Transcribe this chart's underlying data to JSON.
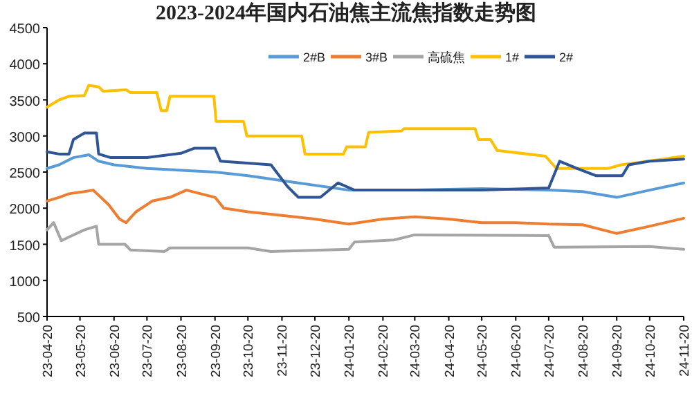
{
  "chart_data": {
    "type": "line",
    "title": "2023-2024年国内石油焦主流焦指数走势图",
    "legend": "top",
    "grid": false,
    "marker": "none",
    "line_style": "solid",
    "xlim": [
      "2023-04-20",
      "2024-11-20"
    ],
    "xticks": [
      {
        "value": "2023-04-20",
        "label": "23-04-20"
      },
      {
        "value": "2023-05-20",
        "label": "23-05-20"
      },
      {
        "value": "2023-06-20",
        "label": "23-06-20"
      },
      {
        "value": "2023-07-20",
        "label": "23-07-20"
      },
      {
        "value": "2023-08-20",
        "label": "23-08-20"
      },
      {
        "value": "2023-09-20",
        "label": "23-09-20"
      },
      {
        "value": "2023-10-20",
        "label": "23-10-20"
      },
      {
        "value": "2023-11-20",
        "label": "23-11-20"
      },
      {
        "value": "2023-12-20",
        "label": "23-12-20"
      },
      {
        "value": "2024-01-20",
        "label": "24-01-20"
      },
      {
        "value": "2024-02-20",
        "label": "24-02-20"
      },
      {
        "value": "2024-03-20",
        "label": "24-03-20"
      },
      {
        "value": "2024-04-20",
        "label": "24-04-20"
      },
      {
        "value": "2024-05-20",
        "label": "24-05-20"
      },
      {
        "value": "2024-06-20",
        "label": "24-06-20"
      },
      {
        "value": "2024-07-20",
        "label": "24-07-20"
      },
      {
        "value": "2024-08-20",
        "label": "24-08-20"
      },
      {
        "value": "2024-09-20",
        "label": "24-09-20"
      },
      {
        "value": "2024-10-20",
        "label": "24-10-20"
      },
      {
        "value": "2024-11-20",
        "label": "24-11-20"
      }
    ],
    "ylim": [
      500,
      4500
    ],
    "yticks": [
      500,
      1000,
      1500,
      2000,
      2500,
      3000,
      3500,
      4000,
      4500
    ],
    "series": [
      {
        "name": "2#B",
        "color": "#5b9bd5",
        "x": [
          "2023-04-20",
          "2023-05-01",
          "2023-05-14",
          "2023-05-28",
          "2023-06-06",
          "2023-06-20",
          "2023-07-20",
          "2023-09-20",
          "2023-10-20",
          "2023-12-05",
          "2024-01-20",
          "2024-03-20",
          "2024-05-20",
          "2024-07-20",
          "2024-08-20",
          "2024-09-20",
          "2024-10-20",
          "2024-11-20"
        ],
        "values": [
          2550,
          2600,
          2700,
          2740,
          2650,
          2600,
          2550,
          2500,
          2450,
          2350,
          2250,
          2250,
          2270,
          2250,
          2230,
          2150,
          2250,
          2350
        ]
      },
      {
        "name": "3#B",
        "color": "#ed7d31",
        "x": [
          "2023-04-20",
          "2023-05-01",
          "2023-05-10",
          "2023-05-24",
          "2023-06-01",
          "2023-06-15",
          "2023-06-25",
          "2023-07-01",
          "2023-07-10",
          "2023-07-25",
          "2023-08-10",
          "2023-08-25",
          "2023-09-20",
          "2023-09-28",
          "2023-10-20",
          "2023-11-20",
          "2023-12-20",
          "2024-01-20",
          "2024-02-20",
          "2024-03-20",
          "2024-04-20",
          "2024-05-20",
          "2024-06-20",
          "2024-07-20",
          "2024-08-20",
          "2024-09-20",
          "2024-10-20",
          "2024-11-20"
        ],
        "values": [
          2100,
          2150,
          2200,
          2230,
          2250,
          2050,
          1850,
          1800,
          1950,
          2100,
          2150,
          2250,
          2150,
          2000,
          1950,
          1900,
          1850,
          1780,
          1850,
          1880,
          1850,
          1800,
          1800,
          1780,
          1770,
          1650,
          1750,
          1860
        ]
      },
      {
        "name": "高硫焦",
        "color": "#a5a5a5",
        "x": [
          "2023-04-20",
          "2023-04-26",
          "2023-05-03",
          "2023-05-10",
          "2023-05-24",
          "2023-06-04",
          "2023-06-06",
          "2023-06-30",
          "2023-07-05",
          "2023-08-05",
          "2023-08-10",
          "2023-10-20",
          "2023-11-10",
          "2024-01-20",
          "2024-01-25",
          "2024-03-01",
          "2024-03-20",
          "2024-07-20",
          "2024-07-25",
          "2024-10-20",
          "2024-11-20"
        ],
        "values": [
          1700,
          1800,
          1550,
          1600,
          1700,
          1750,
          1500,
          1500,
          1420,
          1400,
          1450,
          1450,
          1400,
          1430,
          1530,
          1560,
          1630,
          1620,
          1460,
          1470,
          1430
        ]
      },
      {
        "name": "1#",
        "color": "#ffc000",
        "x": [
          "2023-04-20",
          "2023-05-01",
          "2023-05-10",
          "2023-05-24",
          "2023-05-28",
          "2023-06-06",
          "2023-06-10",
          "2023-07-01",
          "2023-07-05",
          "2023-07-29",
          "2023-08-02",
          "2023-08-07",
          "2023-08-10",
          "2023-09-19",
          "2023-09-21",
          "2023-10-16",
          "2023-10-19",
          "2023-12-08",
          "2023-12-11",
          "2024-01-15",
          "2024-01-18",
          "2024-02-04",
          "2024-02-07",
          "2024-03-08",
          "2024-03-10",
          "2024-05-14",
          "2024-05-17",
          "2024-05-28",
          "2024-06-03",
          "2024-07-17",
          "2024-07-27",
          "2024-09-12",
          "2024-09-24",
          "2024-10-19",
          "2024-11-20"
        ],
        "values": [
          3400,
          3500,
          3550,
          3560,
          3700,
          3680,
          3620,
          3640,
          3600,
          3600,
          3350,
          3350,
          3550,
          3550,
          3200,
          3200,
          3000,
          3000,
          2750,
          2750,
          2850,
          2850,
          3050,
          3070,
          3100,
          3100,
          2950,
          2950,
          2800,
          2720,
          2550,
          2550,
          2600,
          2650,
          2720
        ]
      },
      {
        "name": "2#",
        "color": "#2f5597",
        "x": [
          "2023-04-20",
          "2023-05-01",
          "2023-05-10",
          "2023-05-14",
          "2023-05-24",
          "2023-06-04",
          "2023-06-06",
          "2023-06-17",
          "2023-07-20",
          "2023-08-20",
          "2023-09-01",
          "2023-09-20",
          "2023-09-25",
          "2023-11-10",
          "2023-11-25",
          "2023-12-05",
          "2023-12-25",
          "2024-01-10",
          "2024-01-25",
          "2024-03-20",
          "2024-05-20",
          "2024-07-20",
          "2024-07-30",
          "2024-08-15",
          "2024-09-01",
          "2024-09-25",
          "2024-10-01",
          "2024-10-20",
          "2024-11-20"
        ],
        "values": [
          2780,
          2750,
          2750,
          2950,
          3040,
          3040,
          2750,
          2700,
          2700,
          2760,
          2830,
          2830,
          2650,
          2600,
          2300,
          2150,
          2150,
          2350,
          2250,
          2250,
          2250,
          2280,
          2650,
          2550,
          2450,
          2450,
          2600,
          2650,
          2680
        ]
      }
    ]
  }
}
